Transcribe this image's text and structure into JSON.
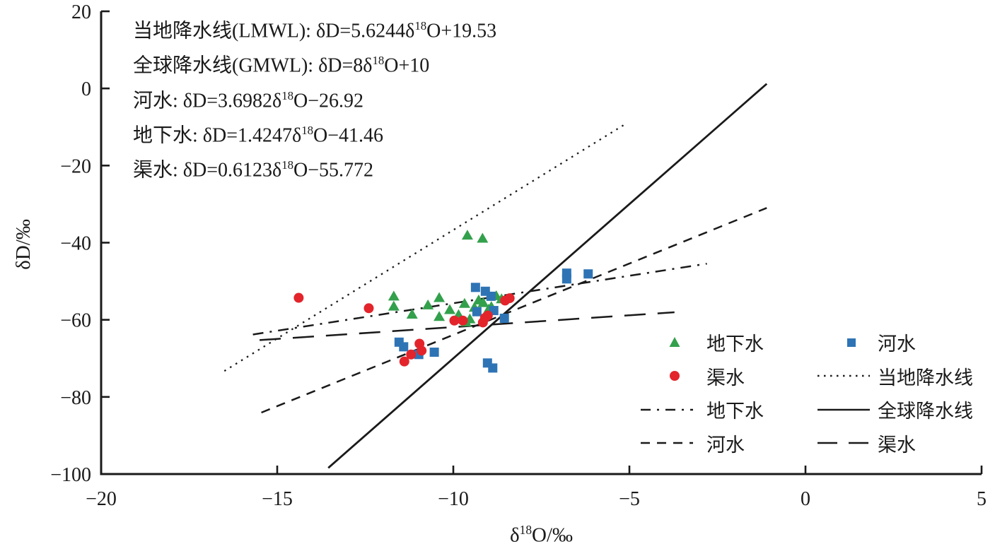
{
  "figure": {
    "background": "#ffffff",
    "text_color": "#1a1a1a",
    "line_color": "#1a1a1a",
    "colors": {
      "groundwater_green": "#33a04c",
      "canal_red": "#e3242b",
      "river_blue": "#2e74b5"
    }
  },
  "equations": {
    "lines": [
      {
        "pre": "当地降水线(LMWL): δD=5.6244δ",
        "sup": "18",
        "post": "O+19.53"
      },
      {
        "pre": "全球降水线(GMWL): δD=8δ",
        "sup": "18",
        "post": "O+10"
      },
      {
        "pre": "河水: δD=3.6982δ",
        "sup": "18",
        "post": "O−26.92"
      },
      {
        "pre": "地下水: δD=1.4247δ",
        "sup": "18",
        "post": "O−41.46"
      },
      {
        "pre": "渠水: δD=0.6123δ",
        "sup": "18",
        "post": "O−55.772"
      }
    ]
  },
  "axes": {
    "x_title": {
      "pre": "δ",
      "sup": "18",
      "post": "O/‰"
    },
    "y_title": "δD/‰"
  },
  "legend": {
    "col1": [
      {
        "label": "地下水",
        "sample": {
          "kind": "triangle",
          "color": "#33a04c"
        }
      },
      {
        "label": "渠水",
        "sample": {
          "kind": "circle",
          "color": "#e3242b"
        }
      },
      {
        "label": "地下水",
        "sample": {
          "kind": "line",
          "dash": "14 9 3 9",
          "color": "#1a1a1a"
        }
      },
      {
        "label": "河水",
        "sample": {
          "kind": "line",
          "dash": "13 10",
          "color": "#1a1a1a"
        }
      }
    ],
    "col2": [
      {
        "label": "河水",
        "sample": {
          "kind": "square",
          "color": "#2e74b5"
        }
      },
      {
        "label": "当地降水线",
        "sample": {
          "kind": "line",
          "dash": "2.5 6.5",
          "color": "#1a1a1a"
        }
      },
      {
        "label": "全球降水线",
        "sample": {
          "kind": "line",
          "dash": "",
          "color": "#1a1a1a"
        }
      },
      {
        "label": "渠水",
        "sample": {
          "kind": "line",
          "dash": "28 16",
          "color": "#1a1a1a"
        }
      }
    ]
  },
  "chart_data": {
    "type": "scatter",
    "title": "",
    "xlabel": "δ¹⁸O/‰",
    "ylabel": "δD/‰",
    "xlim": [
      -20,
      5
    ],
    "ylim": [
      -100,
      20
    ],
    "grid": false,
    "x_ticks": [
      {
        "v": -20,
        "label": "−20"
      },
      {
        "v": -15,
        "label": "−15"
      },
      {
        "v": -10,
        "label": "−10"
      },
      {
        "v": -5,
        "label": "−5"
      },
      {
        "v": 0,
        "label": "0"
      },
      {
        "v": 5,
        "label": "5"
      }
    ],
    "y_ticks": [
      {
        "v": 20,
        "label": "20"
      },
      {
        "v": 0,
        "label": "0"
      },
      {
        "v": -20,
        "label": "−20"
      },
      {
        "v": -40,
        "label": "−40"
      },
      {
        "v": -60,
        "label": "−60"
      },
      {
        "v": -80,
        "label": "−80"
      },
      {
        "v": -100,
        "label": "−100"
      }
    ],
    "series": [
      {
        "name": "地下水",
        "marker": "triangle",
        "color": "#33a04c",
        "points": [
          [
            -9.6,
            -38.1
          ],
          [
            -9.17,
            -38.9
          ],
          [
            -11.69,
            -53.9
          ],
          [
            -11.69,
            -56.5
          ],
          [
            -11.17,
            -58.6
          ],
          [
            -10.72,
            -56.2
          ],
          [
            -10.4,
            -54.3
          ],
          [
            -10.4,
            -59.2
          ],
          [
            -10.1,
            -57.4
          ],
          [
            -9.85,
            -58.7
          ],
          [
            -9.68,
            -55.8
          ],
          [
            -9.64,
            -60.6
          ],
          [
            -9.53,
            -59.8
          ],
          [
            -9.4,
            -56.8
          ],
          [
            -9.28,
            -54.9
          ],
          [
            -9.15,
            -55.6
          ],
          [
            -9.0,
            -57.3
          ],
          [
            -8.92,
            -56.6
          ],
          [
            -8.78,
            -53.8
          ],
          [
            -8.63,
            -54.6
          ]
        ]
      },
      {
        "name": "河水",
        "marker": "square",
        "color": "#2e74b5",
        "points": [
          [
            -9.37,
            -51.6
          ],
          [
            -9.09,
            -52.6
          ],
          [
            -8.93,
            -53.9
          ],
          [
            -9.33,
            -57.9
          ],
          [
            -8.85,
            -57.6
          ],
          [
            -8.55,
            -59.6
          ],
          [
            -6.78,
            -47.9
          ],
          [
            -6.78,
            -49.4
          ],
          [
            -6.17,
            -48.1
          ],
          [
            -11.54,
            -65.8
          ],
          [
            -11.41,
            -67.0
          ],
          [
            -10.98,
            -69.0
          ],
          [
            -10.54,
            -68.4
          ],
          [
            -9.03,
            -71.2
          ],
          [
            -8.88,
            -72.5
          ]
        ]
      },
      {
        "name": "渠水",
        "marker": "circle",
        "color": "#e3242b",
        "points": [
          [
            -14.39,
            -54.3
          ],
          [
            -12.4,
            -57.0
          ],
          [
            -9.97,
            -60.2
          ],
          [
            -9.73,
            -60.2
          ],
          [
            -9.16,
            -60.7
          ],
          [
            -9.1,
            -59.5
          ],
          [
            -9.02,
            -58.9
          ],
          [
            -8.53,
            -55.0
          ],
          [
            -8.4,
            -54.4
          ],
          [
            -10.96,
            -66.2
          ],
          [
            -10.9,
            -68.0
          ],
          [
            -11.2,
            -69.0
          ],
          [
            -11.39,
            -70.8
          ]
        ]
      }
    ],
    "lines": [
      {
        "name": "当地降水线(LMWL)",
        "equation": "δD=5.6244δ¹⁸O+19.53",
        "slope": 5.6244,
        "intercept": 19.53,
        "x_range": [
          -16.5,
          -5.15
        ],
        "dash": "2.5 6.8",
        "width": 2.3
      },
      {
        "name": "全球降水线(GMWL)",
        "equation": "δD=8δ¹⁸O+10",
        "slope": 8,
        "intercept": 10,
        "x_range": [
          -13.55,
          -1.1
        ],
        "dash": "",
        "width": 2.8
      },
      {
        "name": "河水",
        "equation": "δD=3.6982δ¹⁸O−26.92",
        "slope": 3.6982,
        "intercept": -26.92,
        "x_range": [
          -15.45,
          -1.1
        ],
        "dash": "13 10",
        "width": 2.5
      },
      {
        "name": "地下水",
        "equation": "δD=1.4247δ¹⁸O−41.46",
        "slope": 1.4247,
        "intercept": -41.46,
        "x_range": [
          -15.69,
          -2.8
        ],
        "dash": "15 9 3 9",
        "width": 2.5
      },
      {
        "name": "渠水",
        "equation": "δD=0.6123δ¹⁸O−55.772",
        "slope": 0.6123,
        "intercept": -55.772,
        "x_range": [
          -15.5,
          -3.72
        ],
        "dash": "30 17",
        "width": 2.5
      }
    ]
  }
}
